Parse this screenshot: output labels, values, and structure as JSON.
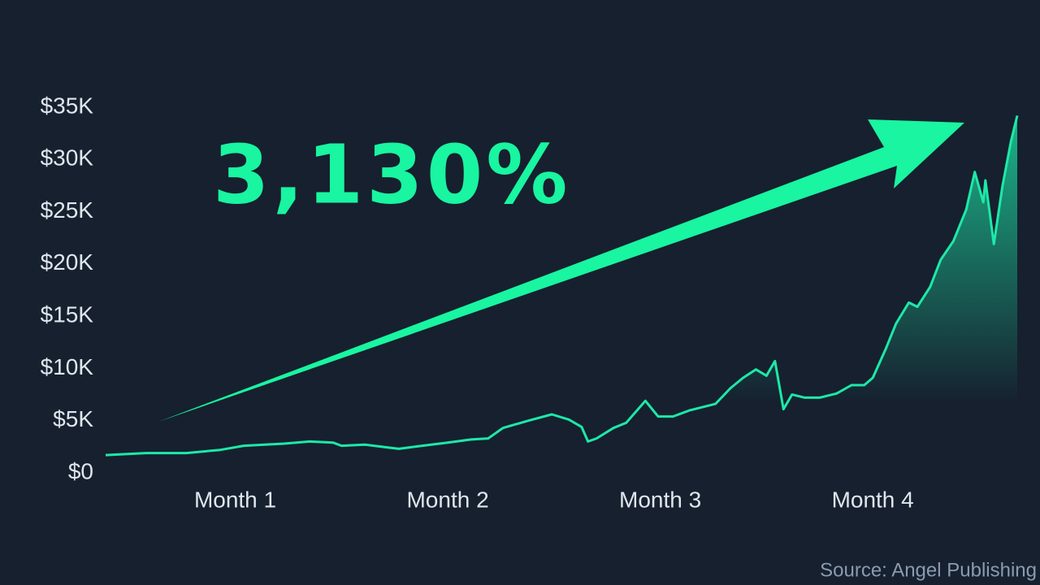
{
  "chart_data": {
    "type": "line",
    "annotation": "3,130%",
    "source": "Source: Angel Publishing",
    "color": "#1de9a8",
    "x": [
      0.39,
      0.58,
      0.77,
      0.93,
      1.04,
      1.23,
      1.35,
      1.46,
      1.5,
      1.61,
      1.73,
      1.77,
      1.88,
      2.0,
      2.11,
      2.19,
      2.26,
      2.38,
      2.49,
      2.57,
      2.63,
      2.66,
      2.7,
      2.78,
      2.84,
      2.93,
      2.99,
      3.06,
      3.14,
      3.26,
      3.33,
      3.39,
      3.45,
      3.5,
      3.54,
      3.58,
      3.62,
      3.68,
      3.75,
      3.83,
      3.9,
      3.96,
      4.0,
      4.06,
      4.11,
      4.17,
      4.21,
      4.27,
      4.32,
      4.38,
      4.44,
      4.48,
      4.52,
      4.53,
      4.57,
      4.61,
      4.65,
      4.68
    ],
    "values": [
      1700,
      1900,
      1900,
      2200,
      2600,
      2800,
      3000,
      2900,
      2600,
      2700,
      2400,
      2300,
      2600,
      2900,
      3200,
      3300,
      4300,
      5000,
      5600,
      5100,
      4400,
      3000,
      3300,
      4300,
      4800,
      6900,
      5400,
      5400,
      6000,
      6600,
      8100,
      9100,
      9900,
      9300,
      10700,
      6100,
      7500,
      7200,
      7200,
      7600,
      8400,
      8400,
      9100,
      11800,
      14300,
      16300,
      15900,
      17800,
      20400,
      22200,
      25200,
      28800,
      25900,
      28000,
      21900,
      27400,
      31700,
      34200
    ],
    "xlim": [
      0.39,
      4.68
    ],
    "xticks": [
      {
        "value": 1,
        "label": "Month 1"
      },
      {
        "value": 2,
        "label": "Month 2"
      },
      {
        "value": 3,
        "label": "Month 3"
      },
      {
        "value": 4,
        "label": "Month 4"
      }
    ],
    "ylim": [
      0,
      35000
    ],
    "yticks": [
      {
        "value": 0,
        "label": "$0"
      },
      {
        "value": 5000,
        "label": "$5K"
      },
      {
        "value": 10000,
        "label": "$10K"
      },
      {
        "value": 15000,
        "label": "$15K"
      },
      {
        "value": 20000,
        "label": "$20K"
      },
      {
        "value": 25000,
        "label": "$25K"
      },
      {
        "value": 30000,
        "label": "$30K"
      },
      {
        "value": 35000,
        "label": "$35K"
      }
    ],
    "grid": false
  }
}
